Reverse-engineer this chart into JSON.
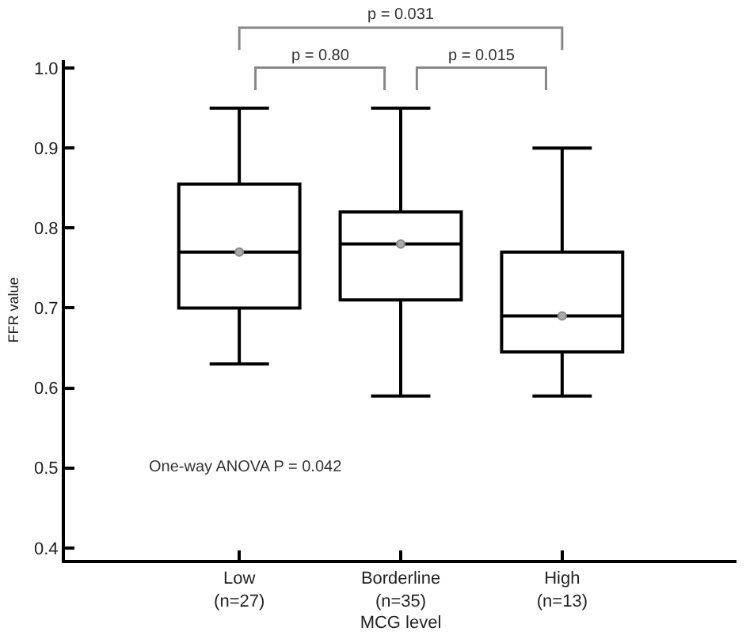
{
  "chart_data": {
    "type": "box",
    "xlabel": "MCG level",
    "ylabel": "FFR value",
    "categories": [
      "Low\n(n=27)",
      "Borderline\n(n=35)",
      "High\n(n=13)"
    ],
    "boxes": [
      {
        "low": 0.63,
        "q1": 0.7,
        "median": 0.77,
        "q3": 0.855,
        "high": 0.95,
        "mean": 0.77
      },
      {
        "low": 0.59,
        "q1": 0.71,
        "median": 0.78,
        "q3": 0.82,
        "high": 0.95,
        "mean": 0.78
      },
      {
        "low": 0.59,
        "q1": 0.645,
        "median": 0.69,
        "q3": 0.77,
        "high": 0.9,
        "mean": 0.69
      }
    ],
    "color": "#000000",
    "ylim": [
      0.385,
      1.01
    ],
    "yticks": [
      {
        "value": 0.4,
        "label": "0.4"
      },
      {
        "value": 0.5,
        "label": "0.5"
      },
      {
        "value": 0.6,
        "label": "0.6"
      },
      {
        "value": 0.7,
        "label": "0.7"
      },
      {
        "value": 0.8,
        "label": "0.8"
      },
      {
        "value": 0.9,
        "label": "0.9"
      },
      {
        "value": 1.0,
        "label": "1.0"
      }
    ],
    "annotations": [
      "p = 0.031",
      "p = 0.80",
      "p = 0.015",
      "One-way ANOVA P = 0.042"
    ]
  }
}
